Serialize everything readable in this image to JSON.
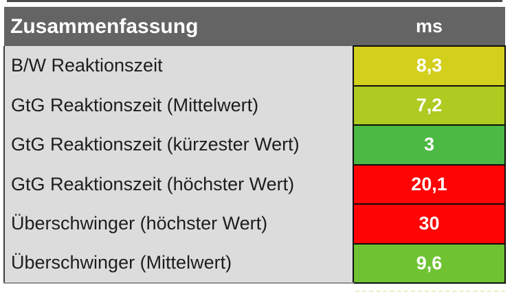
{
  "table": {
    "title": "Zusammenfassung",
    "unit_header": "ms",
    "rows": [
      {
        "label": "B/W Reaktionszeit",
        "value": "8,3",
        "color": "#d3cf1d"
      },
      {
        "label": "GtG Reaktionszeit (Mittelwert)",
        "value": "7,2",
        "color": "#afca20"
      },
      {
        "label": "GtG Reaktionszeit (kürzester Wert)",
        "value": "3",
        "color": "#4bb944"
      },
      {
        "label": "GtG Reaktionszeit (höchster Wert)",
        "value": "20,1",
        "color": "#fe0404"
      },
      {
        "label": "Überschwinger (höchster Wert)",
        "value": "30",
        "color": "#fe0404"
      },
      {
        "label": "Überschwinger (Mittelwert)",
        "value": "9,6",
        "color": "#6fc333"
      }
    ],
    "colors": {
      "header_bg": "#646464",
      "header_text": "#ffffff",
      "label_bg": "#dcdcdc",
      "label_text": "#1d1d1d",
      "value_text": "#ffffff",
      "cell_border": "#0d0d0d",
      "good": "#4bb944",
      "ok": "#afca20",
      "warn": "#d3cf1d",
      "bad": "#fe0404"
    }
  },
  "chart_data": {
    "type": "table",
    "title": "Zusammenfassung",
    "columns": [
      "Zusammenfassung",
      "ms"
    ],
    "rows": [
      [
        "B/W Reaktionszeit",
        8.3
      ],
      [
        "GtG Reaktionszeit (Mittelwert)",
        7.2
      ],
      [
        "GtG Reaktionszeit (kürzester Wert)",
        3
      ],
      [
        "GtG Reaktionszeit (höchster Wert)",
        20.1
      ],
      [
        "Überschwinger (höchster Wert)",
        30
      ],
      [
        "Überschwinger (Mittelwert)",
        9.6
      ]
    ],
    "value_cell_colors": [
      "#d3cf1d",
      "#afca20",
      "#4bb944",
      "#fe0404",
      "#fe0404",
      "#6fc333"
    ],
    "value_format": "german-decimal-comma",
    "unit": "ms"
  }
}
